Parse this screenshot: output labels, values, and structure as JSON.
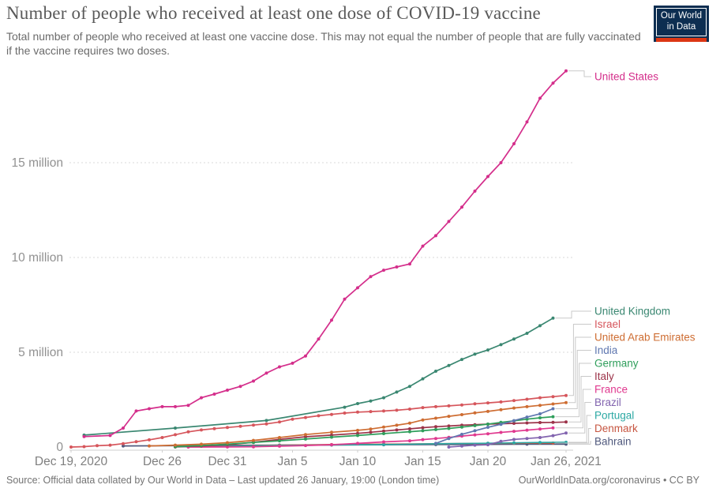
{
  "header": {
    "title": "Number of people who received at least one dose of COVID-19 vaccine",
    "subtitle": "Total number of people who received at least one vaccine dose. This may not equal the number of people that are fully vaccinated if the vaccine requires two doses.",
    "logo": {
      "line1": "Our World",
      "line2": "in Data",
      "bg": "#0d2e51",
      "accent": "#dc3714"
    }
  },
  "footer": {
    "source": "Source: Official data collated by Our World in Data – Last updated 26 January, 19:00 (London time)",
    "attribution": "OurWorldInData.org/coronavirus • CC BY"
  },
  "chart_data": {
    "type": "line",
    "title": "Number of people who received at least one dose of COVID-19 vaccine",
    "legend_position": "right-edge labels connected to line ends",
    "grid": "horizontal dashed gridlines",
    "x_axis": {
      "unit": "date",
      "start": "Dec 19, 2020",
      "end": "Jan 26, 2021",
      "domain_days": [
        0,
        38
      ],
      "ticks": [
        {
          "day": 0,
          "label": "Dec 19, 2020"
        },
        {
          "day": 7,
          "label": "Dec 26"
        },
        {
          "day": 12,
          "label": "Dec 31"
        },
        {
          "day": 17,
          "label": "Jan 5"
        },
        {
          "day": 22,
          "label": "Jan 10"
        },
        {
          "day": 27,
          "label": "Jan 15"
        },
        {
          "day": 32,
          "label": "Jan 20"
        },
        {
          "day": 38,
          "label": "Jan 26, 2021"
        }
      ]
    },
    "y_axis": {
      "unit": "people (millions)",
      "ylim": [
        0,
        20
      ],
      "ticks": [
        {
          "value": 0,
          "label": "0"
        },
        {
          "value": 5,
          "label": "5 million"
        },
        {
          "value": 10,
          "label": "10 million"
        },
        {
          "value": 15,
          "label": "15 million"
        }
      ]
    },
    "series": [
      {
        "name": "United States",
        "color": "#d42e8b",
        "points": [
          [
            1,
            0.55
          ],
          [
            3,
            0.61
          ],
          [
            4,
            1.0
          ],
          [
            5,
            1.9
          ],
          [
            6,
            2.02
          ],
          [
            7,
            2.13
          ],
          [
            8,
            2.13
          ],
          [
            9,
            2.2
          ],
          [
            10,
            2.6
          ],
          [
            11,
            2.79
          ],
          [
            12,
            3.0
          ],
          [
            13,
            3.2
          ],
          [
            14,
            3.48
          ],
          [
            15,
            3.9
          ],
          [
            16,
            4.23
          ],
          [
            17,
            4.42
          ],
          [
            18,
            4.8
          ],
          [
            19,
            5.7
          ],
          [
            20,
            6.69
          ],
          [
            21,
            7.8
          ],
          [
            22,
            8.4
          ],
          [
            23,
            8.99
          ],
          [
            24,
            9.33
          ],
          [
            25,
            9.5
          ],
          [
            26,
            9.66
          ],
          [
            27,
            10.6
          ],
          [
            28,
            11.15
          ],
          [
            29,
            11.9
          ],
          [
            30,
            12.66
          ],
          [
            31,
            13.5
          ],
          [
            32,
            14.27
          ],
          [
            33,
            15.0
          ],
          [
            34,
            16.0
          ],
          [
            35,
            17.15
          ],
          [
            36,
            18.4
          ],
          [
            37,
            19.2
          ],
          [
            38,
            19.84
          ]
        ]
      },
      {
        "name": "United Kingdom",
        "color": "#3a8771",
        "points": [
          [
            1,
            0.63
          ],
          [
            8,
            1.0
          ],
          [
            15,
            1.4
          ],
          [
            21,
            2.1
          ],
          [
            22,
            2.29
          ],
          [
            23,
            2.43
          ],
          [
            24,
            2.6
          ],
          [
            25,
            2.9
          ],
          [
            26,
            3.2
          ],
          [
            27,
            3.6
          ],
          [
            28,
            4.0
          ],
          [
            29,
            4.3
          ],
          [
            30,
            4.62
          ],
          [
            31,
            4.9
          ],
          [
            32,
            5.12
          ],
          [
            33,
            5.4
          ],
          [
            34,
            5.7
          ],
          [
            35,
            6.0
          ],
          [
            36,
            6.4
          ],
          [
            37,
            6.8
          ]
        ]
      },
      {
        "name": "Israel",
        "color": "#d6565c",
        "points": [
          [
            0,
            0.0
          ],
          [
            1,
            0.02
          ],
          [
            2,
            0.07
          ],
          [
            3,
            0.1
          ],
          [
            4,
            0.18
          ],
          [
            5,
            0.28
          ],
          [
            6,
            0.38
          ],
          [
            7,
            0.5
          ],
          [
            8,
            0.65
          ],
          [
            9,
            0.8
          ],
          [
            10,
            0.9
          ],
          [
            11,
            0.97
          ],
          [
            12,
            1.03
          ],
          [
            13,
            1.09
          ],
          [
            14,
            1.16
          ],
          [
            15,
            1.22
          ],
          [
            16,
            1.32
          ],
          [
            17,
            1.47
          ],
          [
            18,
            1.56
          ],
          [
            19,
            1.65
          ],
          [
            20,
            1.72
          ],
          [
            21,
            1.79
          ],
          [
            22,
            1.84
          ],
          [
            23,
            1.87
          ],
          [
            24,
            1.9
          ],
          [
            25,
            1.94
          ],
          [
            26,
            2.0
          ],
          [
            27,
            2.08
          ],
          [
            28,
            2.13
          ],
          [
            29,
            2.17
          ],
          [
            30,
            2.22
          ],
          [
            31,
            2.28
          ],
          [
            32,
            2.33
          ],
          [
            33,
            2.38
          ],
          [
            34,
            2.45
          ],
          [
            35,
            2.52
          ],
          [
            36,
            2.6
          ],
          [
            37,
            2.66
          ],
          [
            38,
            2.72
          ]
        ]
      },
      {
        "name": "United Arab Emirates",
        "color": "#ce6d32",
        "points": [
          [
            6,
            0.06
          ],
          [
            8,
            0.1
          ],
          [
            10,
            0.15
          ],
          [
            12,
            0.23
          ],
          [
            14,
            0.35
          ],
          [
            16,
            0.5
          ],
          [
            18,
            0.66
          ],
          [
            20,
            0.78
          ],
          [
            22,
            0.88
          ],
          [
            23,
            0.95
          ],
          [
            24,
            1.05
          ],
          [
            25,
            1.15
          ],
          [
            26,
            1.26
          ],
          [
            27,
            1.43
          ],
          [
            28,
            1.52
          ],
          [
            29,
            1.62
          ],
          [
            30,
            1.71
          ],
          [
            31,
            1.8
          ],
          [
            32,
            1.88
          ],
          [
            33,
            1.97
          ],
          [
            34,
            2.06
          ],
          [
            35,
            2.13
          ],
          [
            36,
            2.2
          ],
          [
            37,
            2.27
          ],
          [
            38,
            2.34
          ]
        ]
      },
      {
        "name": "India",
        "color": "#5f77b0",
        "points": [
          [
            28,
            0.19
          ],
          [
            29,
            0.45
          ],
          [
            30,
            0.67
          ],
          [
            31,
            0.86
          ],
          [
            32,
            1.04
          ],
          [
            33,
            1.2
          ],
          [
            34,
            1.39
          ],
          [
            35,
            1.58
          ],
          [
            36,
            1.75
          ],
          [
            37,
            2.02
          ]
        ]
      },
      {
        "name": "Germany",
        "color": "#2f9e5b",
        "points": [
          [
            8,
            0.02
          ],
          [
            10,
            0.08
          ],
          [
            12,
            0.15
          ],
          [
            14,
            0.24
          ],
          [
            16,
            0.33
          ],
          [
            18,
            0.42
          ],
          [
            20,
            0.52
          ],
          [
            22,
            0.61
          ],
          [
            24,
            0.71
          ],
          [
            26,
            0.81
          ],
          [
            27,
            0.86
          ],
          [
            28,
            0.92
          ],
          [
            29,
            0.98
          ],
          [
            30,
            1.05
          ],
          [
            31,
            1.13
          ],
          [
            32,
            1.21
          ],
          [
            33,
            1.3
          ],
          [
            34,
            1.38
          ],
          [
            35,
            1.47
          ],
          [
            36,
            1.54
          ],
          [
            37,
            1.6
          ]
        ]
      },
      {
        "name": "Italy",
        "color": "#9c3349",
        "points": [
          [
            8,
            0.01
          ],
          [
            10,
            0.05
          ],
          [
            12,
            0.12
          ],
          [
            14,
            0.25
          ],
          [
            16,
            0.4
          ],
          [
            18,
            0.54
          ],
          [
            20,
            0.63
          ],
          [
            22,
            0.72
          ],
          [
            23,
            0.78
          ],
          [
            24,
            0.84
          ],
          [
            25,
            0.9
          ],
          [
            26,
            0.96
          ],
          [
            27,
            1.02
          ],
          [
            28,
            1.07
          ],
          [
            29,
            1.11
          ],
          [
            30,
            1.15
          ],
          [
            31,
            1.18
          ],
          [
            32,
            1.21
          ],
          [
            33,
            1.23
          ],
          [
            34,
            1.25
          ],
          [
            35,
            1.27
          ],
          [
            36,
            1.29
          ],
          [
            37,
            1.3
          ],
          [
            38,
            1.32
          ]
        ]
      },
      {
        "name": "France",
        "color": "#e0398f",
        "points": [
          [
            9,
            0.0
          ],
          [
            12,
            0.004
          ],
          [
            14,
            0.012
          ],
          [
            16,
            0.045
          ],
          [
            18,
            0.08
          ],
          [
            20,
            0.12
          ],
          [
            22,
            0.19
          ],
          [
            24,
            0.27
          ],
          [
            26,
            0.33
          ],
          [
            27,
            0.39
          ],
          [
            28,
            0.45
          ],
          [
            29,
            0.51
          ],
          [
            30,
            0.58
          ],
          [
            31,
            0.64
          ],
          [
            32,
            0.7
          ],
          [
            33,
            0.77
          ],
          [
            34,
            0.83
          ],
          [
            35,
            0.89
          ],
          [
            36,
            0.95
          ],
          [
            37,
            1.01
          ]
        ]
      },
      {
        "name": "Brazil",
        "color": "#8264af",
        "points": [
          [
            29,
            0.0
          ],
          [
            30,
            0.05
          ],
          [
            31,
            0.1
          ],
          [
            32,
            0.12
          ],
          [
            33,
            0.3
          ],
          [
            34,
            0.4
          ],
          [
            35,
            0.45
          ],
          [
            36,
            0.5
          ],
          [
            37,
            0.6
          ],
          [
            38,
            0.74
          ]
        ]
      },
      {
        "name": "Portugal",
        "color": "#2ba8a3",
        "points": [
          [
            8,
            0.01
          ],
          [
            12,
            0.04
          ],
          [
            16,
            0.08
          ],
          [
            20,
            0.11
          ],
          [
            24,
            0.13
          ],
          [
            28,
            0.17
          ],
          [
            32,
            0.2
          ],
          [
            34,
            0.22
          ],
          [
            36,
            0.24
          ],
          [
            38,
            0.25
          ]
        ]
      },
      {
        "name": "Denmark",
        "color": "#c65540",
        "points": [
          [
            8,
            0.01
          ],
          [
            12,
            0.05
          ],
          [
            16,
            0.1
          ],
          [
            20,
            0.13
          ],
          [
            24,
            0.15
          ],
          [
            28,
            0.17
          ],
          [
            32,
            0.19
          ],
          [
            34,
            0.2
          ],
          [
            36,
            0.21
          ],
          [
            37,
            0.21
          ]
        ]
      },
      {
        "name": "Bahrain",
        "color": "#50597d",
        "points": [
          [
            4,
            0.06
          ],
          [
            8,
            0.07
          ],
          [
            12,
            0.09
          ],
          [
            16,
            0.1
          ],
          [
            20,
            0.11
          ],
          [
            24,
            0.12
          ],
          [
            28,
            0.13
          ],
          [
            32,
            0.14
          ],
          [
            35,
            0.15
          ],
          [
            38,
            0.15
          ]
        ]
      }
    ]
  }
}
